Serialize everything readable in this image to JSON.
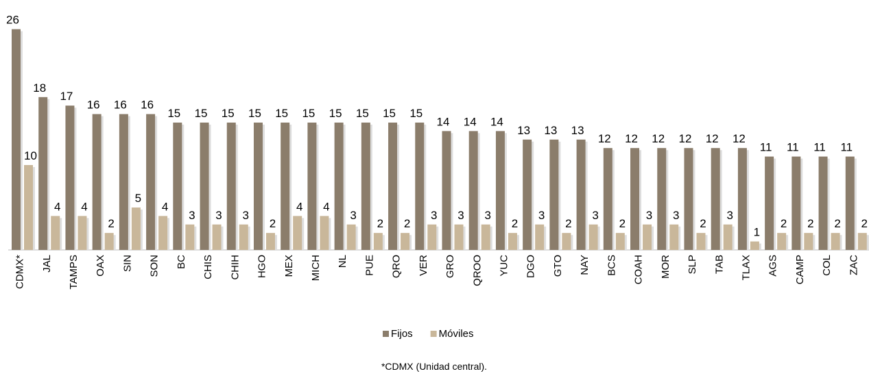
{
  "chart_data": {
    "type": "bar",
    "categories": [
      "CDMX*",
      "JAL",
      "TAMPS",
      "OAX",
      "SIN",
      "SON",
      "BC",
      "CHIS",
      "CHIH",
      "HGO",
      "MEX",
      "MICH",
      "NL",
      "PUE",
      "QRO",
      "VER",
      "GRO",
      "QROO",
      "YUC",
      "DGO",
      "GTO",
      "NAY",
      "BCS",
      "COAH",
      "MOR",
      "SLP",
      "TAB",
      "TLAX",
      "AGS",
      "CAMP",
      "COL",
      "ZAC"
    ],
    "series": [
      {
        "name": "Fijos",
        "color": "#8b7d6b",
        "values": [
          26,
          18,
          17,
          16,
          16,
          16,
          15,
          15,
          15,
          15,
          15,
          15,
          15,
          15,
          15,
          15,
          14,
          14,
          14,
          13,
          13,
          13,
          12,
          12,
          12,
          12,
          12,
          12,
          11,
          11,
          11,
          11
        ]
      },
      {
        "name": "Móviles",
        "color": "#c9b79a",
        "values": [
          10,
          4,
          4,
          2,
          5,
          4,
          3,
          3,
          3,
          2,
          4,
          4,
          3,
          2,
          2,
          3,
          3,
          3,
          2,
          3,
          2,
          3,
          2,
          3,
          3,
          2,
          3,
          1,
          2,
          2,
          2,
          2
        ]
      }
    ],
    "footnote": "*CDMX (Unidad central).",
    "legend": "bottom"
  }
}
